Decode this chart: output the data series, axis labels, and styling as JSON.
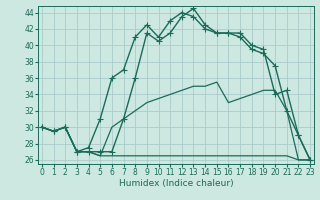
{
  "xlabel": "Humidex (Indice chaleur)",
  "background_color": "#cce8e0",
  "grid_color": "#aacccc",
  "line_color": "#1a6b5a",
  "x_ticks": [
    0,
    1,
    2,
    3,
    4,
    5,
    6,
    7,
    8,
    9,
    10,
    11,
    12,
    13,
    14,
    15,
    16,
    17,
    18,
    19,
    20,
    21,
    22,
    23
  ],
  "y_ticks": [
    26,
    28,
    30,
    32,
    34,
    36,
    38,
    40,
    42,
    44
  ],
  "xlim": [
    -0.3,
    23.3
  ],
  "ylim": [
    25.5,
    44.8
  ],
  "series": [
    {
      "x": [
        0,
        1,
        2,
        3,
        4,
        5,
        6,
        7,
        8,
        9,
        10,
        11,
        12,
        13,
        14,
        15,
        16,
        17,
        18,
        19,
        20,
        21,
        22,
        23
      ],
      "y": [
        30,
        29.5,
        30,
        27,
        27,
        26.5,
        26.5,
        26.5,
        26.5,
        26.5,
        26.5,
        26.5,
        26.5,
        26.5,
        26.5,
        26.5,
        26.5,
        26.5,
        26.5,
        26.5,
        26.5,
        26.5,
        26,
        26
      ],
      "marker": null,
      "linewidth": 0.9
    },
    {
      "x": [
        0,
        1,
        2,
        3,
        4,
        5,
        6,
        7,
        8,
        9,
        10,
        11,
        12,
        13,
        14,
        15,
        16,
        17,
        18,
        19,
        20,
        21,
        22,
        23
      ],
      "y": [
        30,
        29.5,
        30,
        27,
        27,
        26.5,
        30,
        31,
        32,
        33,
        33.5,
        34,
        34.5,
        35,
        35,
        35.5,
        33,
        33.5,
        34,
        34.5,
        34.5,
        32,
        26,
        26
      ],
      "marker": null,
      "linewidth": 0.9
    },
    {
      "x": [
        0,
        1,
        2,
        3,
        4,
        5,
        6,
        7,
        8,
        9,
        10,
        11,
        12,
        13,
        14,
        15,
        16,
        17,
        18,
        19,
        20,
        21,
        22,
        23
      ],
      "y": [
        30,
        29.5,
        30,
        27,
        27.5,
        31,
        36,
        37,
        41,
        42.5,
        41,
        43,
        44,
        43.5,
        42,
        41.5,
        41.5,
        41,
        39.5,
        39,
        37.5,
        32,
        29,
        26
      ],
      "marker": "+",
      "linewidth": 1.0,
      "markersize": 4
    },
    {
      "x": [
        0,
        1,
        2,
        3,
        4,
        5,
        6,
        7,
        8,
        9,
        10,
        11,
        12,
        13,
        14,
        15,
        16,
        17,
        18,
        19,
        20,
        21,
        22,
        23
      ],
      "y": [
        30,
        29.5,
        30,
        27,
        27,
        27,
        27,
        31,
        36,
        41.5,
        40.5,
        41.5,
        43.5,
        44.5,
        42.5,
        41.5,
        41.5,
        41.5,
        40,
        39.5,
        34,
        34.5,
        29,
        26
      ],
      "marker": "+",
      "linewidth": 1.0,
      "markersize": 4
    }
  ]
}
